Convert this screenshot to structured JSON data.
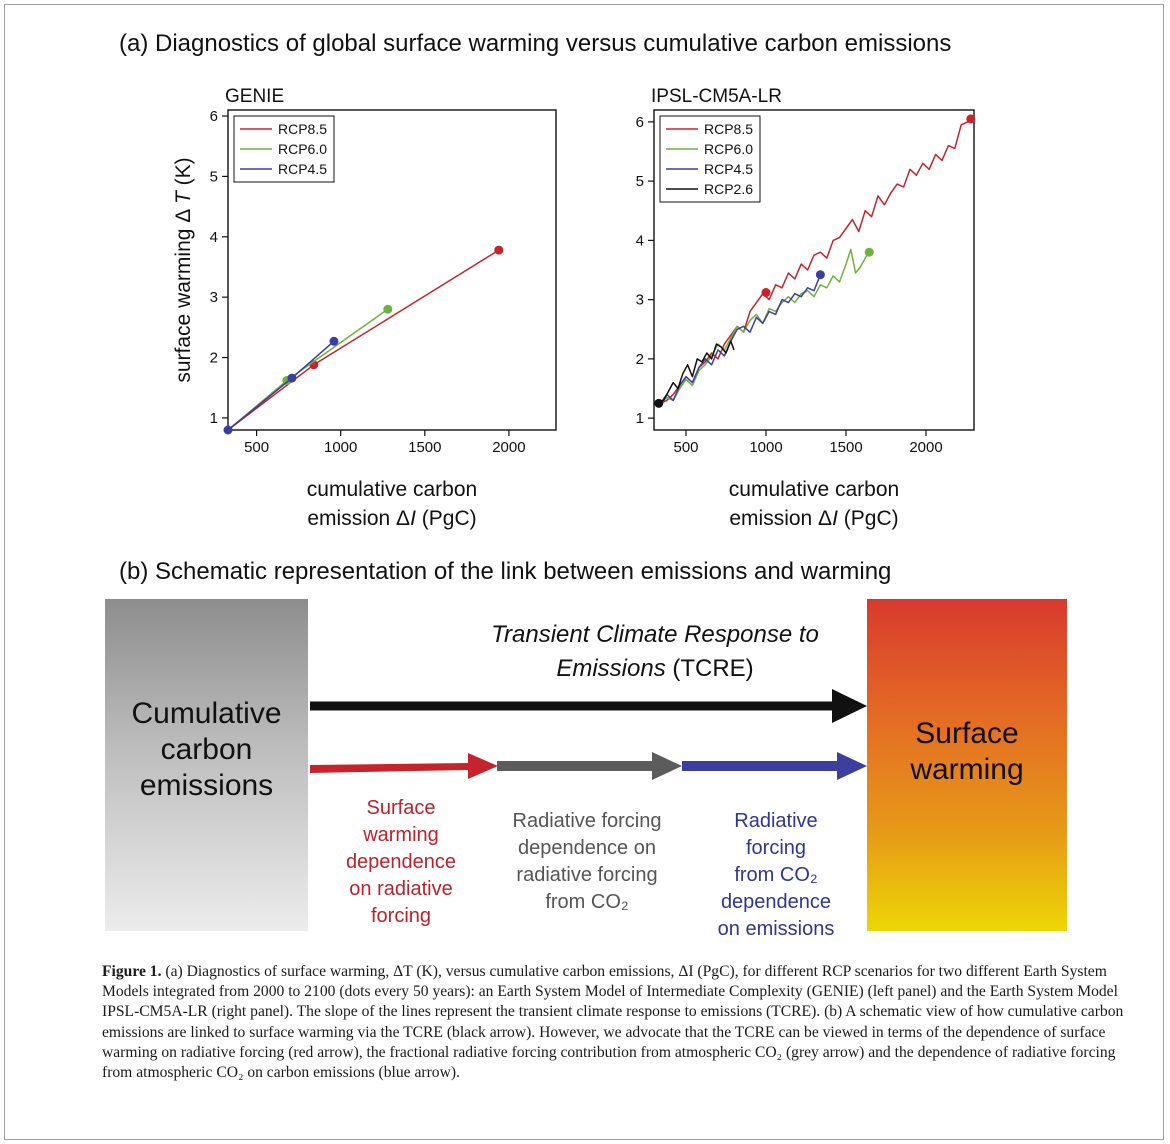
{
  "panel_a_title": "(a) Diagnostics of global surface warming versus cumulative carbon emissions",
  "panel_b_title": "(b) Schematic representation of the link between emissions and warming",
  "colors": {
    "rcp85": "#c8232c",
    "rcp60": "#6db33f",
    "rcp45": "#3a3fa0",
    "rcp26": "#111111",
    "grey_arrow": "#5c5c5c"
  },
  "chart_data": [
    {
      "type": "line",
      "title": "GENIE",
      "xlabel_line1": "cumulative carbon",
      "xlabel_line2": "emission",
      "xlabel_symbol": "I",
      "xlabel_unit": "(PgC)",
      "ylabel": "surface warming",
      "ylabel_symbol": "T",
      "ylabel_unit": "(K)",
      "xlim": [
        330,
        2280
      ],
      "ylim": [
        0.8,
        6.1
      ],
      "xticks": [
        500,
        1000,
        1500,
        2000
      ],
      "yticks": [
        1,
        2,
        3,
        4,
        5,
        6
      ],
      "legend_position": "top-left",
      "series": [
        {
          "name": "RCP8.5",
          "color_key": "rcp85",
          "x": [
            330,
            840,
            1940
          ],
          "y": [
            0.8,
            1.88,
            3.78
          ],
          "dots": [
            [
              840,
              1.88
            ],
            [
              1940,
              3.78
            ]
          ]
        },
        {
          "name": "RCP6.0",
          "color_key": "rcp60",
          "x": [
            330,
            680,
            1280
          ],
          "y": [
            0.8,
            1.62,
            2.8
          ],
          "dots": [
            [
              680,
              1.62
            ],
            [
              1280,
              2.8
            ]
          ]
        },
        {
          "name": "RCP4.5",
          "color_key": "rcp45",
          "x": [
            330,
            710,
            960
          ],
          "y": [
            0.8,
            1.66,
            2.27
          ],
          "dots": [
            [
              330,
              0.8
            ],
            [
              710,
              1.66
            ],
            [
              960,
              2.27
            ]
          ]
        }
      ]
    },
    {
      "type": "line",
      "title": "IPSL-CM5A-LR",
      "xlabel_line1": "cumulative carbon",
      "xlabel_line2": "emission",
      "xlabel_symbol": "I",
      "xlabel_unit": "(PgC)",
      "xlim": [
        300,
        2300
      ],
      "ylim": [
        0.8,
        6.2
      ],
      "xticks": [
        500,
        1000,
        1500,
        2000
      ],
      "yticks": [
        1,
        2,
        3,
        4,
        5,
        6
      ],
      "legend_position": "top-left",
      "series": [
        {
          "name": "RCP8.5",
          "color_key": "rcp85",
          "x": [
            340,
            380,
            420,
            460,
            500,
            540,
            580,
            620,
            660,
            700,
            740,
            780,
            820,
            860,
            900,
            940,
            980,
            1020,
            1060,
            1100,
            1140,
            1180,
            1220,
            1260,
            1300,
            1340,
            1380,
            1420,
            1460,
            1500,
            1540,
            1580,
            1620,
            1660,
            1700,
            1740,
            1780,
            1820,
            1860,
            1900,
            1940,
            1980,
            2020,
            2060,
            2100,
            2140,
            2180,
            2220,
            2260,
            2280
          ],
          "y": [
            1.25,
            1.3,
            1.4,
            1.55,
            1.7,
            1.6,
            1.85,
            1.95,
            2.1,
            2.0,
            2.25,
            2.4,
            2.55,
            2.45,
            2.8,
            2.95,
            3.1,
            3.0,
            3.25,
            3.2,
            3.45,
            3.35,
            3.6,
            3.5,
            3.75,
            3.8,
            3.7,
            4.0,
            4.05,
            4.2,
            4.35,
            4.15,
            4.5,
            4.4,
            4.75,
            4.6,
            4.8,
            4.95,
            4.9,
            5.2,
            5.1,
            5.3,
            5.2,
            5.45,
            5.35,
            5.6,
            5.55,
            5.95,
            6.0,
            6.05
          ],
          "dots": [
            [
              1000,
              3.12
            ],
            [
              2280,
              6.05
            ]
          ]
        },
        {
          "name": "RCP6.0",
          "color_key": "rcp60",
          "x": [
            340,
            380,
            420,
            460,
            500,
            540,
            580,
            620,
            660,
            700,
            740,
            780,
            820,
            860,
            900,
            940,
            980,
            1020,
            1060,
            1100,
            1140,
            1180,
            1220,
            1260,
            1300,
            1340,
            1380,
            1420,
            1460,
            1500,
            1530,
            1560,
            1590,
            1620,
            1645
          ],
          "y": [
            1.25,
            1.35,
            1.3,
            1.5,
            1.65,
            1.55,
            1.8,
            1.9,
            2.05,
            2.25,
            2.15,
            2.35,
            2.55,
            2.45,
            2.65,
            2.75,
            2.6,
            2.85,
            2.8,
            2.95,
            3.05,
            2.95,
            3.1,
            3.15,
            3.05,
            3.25,
            3.2,
            3.4,
            3.3,
            3.6,
            3.85,
            3.45,
            3.55,
            3.7,
            3.8
          ],
          "dots": [
            [
              1645,
              3.8
            ]
          ]
        },
        {
          "name": "RCP4.5",
          "color_key": "rcp45",
          "x": [
            340,
            380,
            420,
            460,
            500,
            540,
            580,
            620,
            660,
            700,
            740,
            780,
            820,
            860,
            900,
            940,
            980,
            1020,
            1060,
            1100,
            1140,
            1180,
            1220,
            1260,
            1300,
            1340
          ],
          "y": [
            1.25,
            1.4,
            1.3,
            1.55,
            1.7,
            1.6,
            1.85,
            2.0,
            1.9,
            2.15,
            2.05,
            2.3,
            2.5,
            2.55,
            2.45,
            2.7,
            2.6,
            2.8,
            2.75,
            3.0,
            2.95,
            3.1,
            3.05,
            3.2,
            3.15,
            3.42
          ],
          "dots": [
            [
              1340,
              3.42
            ]
          ]
        },
        {
          "name": "RCP2.6",
          "color_key": "rcp26",
          "x": [
            330,
            360,
            390,
            420,
            450,
            480,
            510,
            540,
            570,
            600,
            630,
            660,
            690,
            720,
            750,
            780,
            800
          ],
          "y": [
            1.25,
            1.3,
            1.45,
            1.6,
            1.5,
            1.75,
            1.9,
            1.7,
            2.0,
            1.95,
            2.1,
            2.0,
            2.25,
            2.2,
            2.1,
            2.3,
            2.15
          ],
          "dots": [
            [
              330,
              1.25
            ]
          ]
        }
      ]
    }
  ],
  "schematic": {
    "left_box": [
      "Cumulative",
      "carbon",
      "emissions"
    ],
    "right_box": [
      "Surface",
      "warming"
    ],
    "tcre_line1": "Transient Climate Response to",
    "tcre_line2_italic": "Emissions",
    "tcre_line2_rest": " (TCRE)",
    "red_label": [
      "Surface",
      "warming",
      "dependence",
      "on radiative",
      "forcing"
    ],
    "grey_label": [
      "Radiative forcing",
      "dependence on",
      "radiative forcing",
      "from CO₂"
    ],
    "blue_label": [
      "Radiative",
      "forcing",
      "from CO₂",
      "dependence",
      "on emissions"
    ]
  },
  "caption": {
    "label": "Figure 1.",
    "text": " (a) Diagnostics of surface warming, ΔT (K), versus cumulative carbon emissions, ΔI (PgC), for different RCP scenarios for two different Earth System Models integrated from 2000 to 2100 (dots every 50 years): an Earth System Model of Intermediate Complexity (GENIE) (left panel) and the Earth System Model IPSL-CM5A-LR (right panel). The slope of the lines represent the transient climate response to emissions (TCRE). (b) A schematic view of how cumulative carbon emissions are linked to surface warming via the TCRE (black arrow). However, we advocate that the TCRE can be viewed in terms of the dependence of surface warming on radiative forcing (red arrow), the fractional radiative forcing contribution from atmospheric CO₂ (grey arrow) and the dependence of radiative forcing from atmospheric CO₂ on carbon emissions (blue arrow)."
  }
}
